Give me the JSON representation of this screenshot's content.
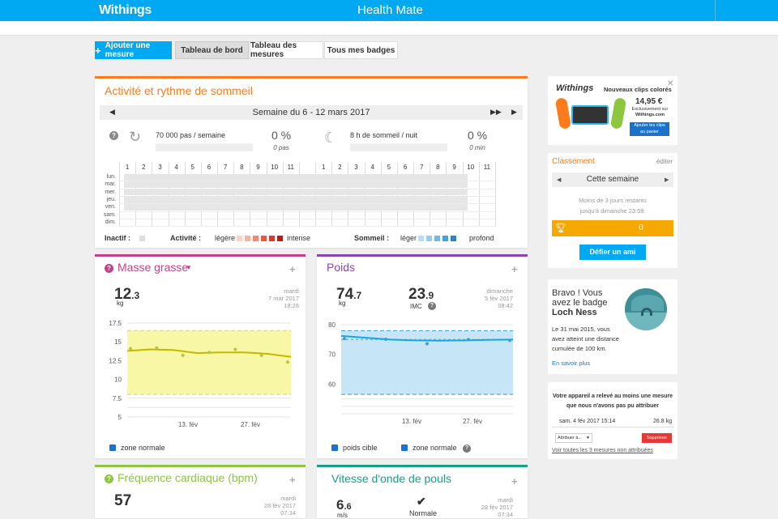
{
  "header": {
    "logo": "Withings",
    "title": "Health Mate"
  },
  "tabs": {
    "add": "Ajouter une mesure",
    "dashboard": "Tableau de bord",
    "measures": "Tableau des mesures",
    "badges": "Tous mes badges"
  },
  "sleep": {
    "title": "Activité et rythme de sommeil",
    "week": "Semaine du 6 - 12 mars 2017",
    "steps_goal": "70 000 pas / semaine",
    "steps_pct": "0 %",
    "steps_unit": "0 pas",
    "sleep_goal": "8 h de sommeil / nuit",
    "sleep_pct": "0 %",
    "sleep_unit": "0 min",
    "hours": [
      "1",
      "2",
      "3",
      "4",
      "5",
      "6",
      "7",
      "8",
      "9",
      "10",
      "11",
      "",
      "1",
      "2",
      "3",
      "4",
      "5",
      "6",
      "7",
      "8",
      "9",
      "10",
      "11"
    ],
    "days": [
      "lun.",
      "mar.",
      "mer.",
      "jeu.",
      "ven.",
      "sam.",
      "dim."
    ],
    "legend": {
      "inactive": "Inactif :",
      "activity": "Activité :",
      "light": "légère",
      "intense": "intense",
      "sleep": "Sommeil :",
      "sleep_light": "léger",
      "sleep_deep": "profond"
    },
    "activity_colors": [
      "#f9d3c8",
      "#f6b3a2",
      "#f08a73",
      "#e75a45",
      "#d63c2f",
      "#b51d1b"
    ],
    "sleep_colors": [
      "#b9ddf0",
      "#99cceb",
      "#74b7e1",
      "#4c9ed3",
      "#2e82c2"
    ]
  },
  "fat": {
    "title": "Masse grasse",
    "value_int": "12",
    "value_dec": ".3",
    "unit": "kg",
    "day": "mardi",
    "date": "7 mar 2017",
    "time": "18:26",
    "legend": "zone normale",
    "color": "#c2418a"
  },
  "weight": {
    "title": "Poids",
    "value_int": "74",
    "value_dec": ".7",
    "unit": "kg",
    "bmi_int": "23",
    "bmi_dec": ".9",
    "bmi_label": "IMC",
    "day": "dimanche",
    "date": "5 fév 2017",
    "time": "08:42",
    "legend_target": "poids cible",
    "legend_zone": "zone normale",
    "color": "#8e44ad"
  },
  "heart": {
    "title": "Fréquence cardiaque (bpm)",
    "value": "57",
    "day": "mardi",
    "date": "28 fév 2017",
    "time": "07:34",
    "color": "#8dc63f"
  },
  "pulse": {
    "title": "Vitesse d'onde de pouls",
    "value_int": "6",
    "value_dec": ".6",
    "unit": "m/s",
    "status": "Normale",
    "day": "mardi",
    "date": "28 fév 2017",
    "time": "07:34"
  },
  "ad": {
    "brand": "Withings",
    "headline": "Nouveaux clips colorés",
    "price": "14,95 €",
    "excl1": "Exclusivement sur",
    "excl2": "Withings.com",
    "cta1": "Ajouter les clips",
    "cta2": "au panier"
  },
  "ranking": {
    "title": "Classement",
    "edit": "éditer",
    "period": "Cette semaine",
    "remaining1": "Moins de 3 jours restants",
    "remaining2": "jusqu'à dimanche 23:59.",
    "score": "0",
    "challenge": "Défier un ami"
  },
  "badge": {
    "line1": "Bravo ! Vous",
    "line2": "avez le badge",
    "name": "Loch Ness",
    "desc1": "Le 31 mai 2015, vous",
    "desc2": "avez atteint une distance",
    "desc3": "cumulée de 100 km.",
    "more": "En savoir plus"
  },
  "unassigned": {
    "msg1": "Votre appareil a relevé au moins une mesure",
    "msg2": "que nous n'avons pas pu attribuer",
    "date": "sam. 4 fév 2017 15:14",
    "value": "26.8 kg",
    "assign": "Attribuer à...",
    "delete": "Supprimer",
    "link": "Voir toutes les 3 mesures non attribuées"
  },
  "chart_data": [
    {
      "type": "line",
      "title": "Masse grasse",
      "ylim": [
        5,
        17.5
      ],
      "yticks": [
        "17.5",
        "15",
        "12.5",
        "10",
        "7.5",
        "5"
      ],
      "xticks": [
        "13. fév",
        "27. fév"
      ],
      "normal_zone": [
        8,
        16.5
      ],
      "series": [
        {
          "values": [
            13.8,
            14.0,
            13.9,
            13.5,
            13.6,
            13.6,
            13.4,
            13.0
          ]
        }
      ],
      "points": [
        14.1,
        14.2,
        13.2,
        13.6,
        14.0,
        13.2,
        12.3
      ]
    },
    {
      "type": "line",
      "title": "Poids",
      "ylim": [
        50,
        80
      ],
      "yticks": [
        "80",
        "70",
        "60"
      ],
      "xticks": [
        "13. fév",
        "27. fév"
      ],
      "normal_zone": [
        56.5,
        78
      ],
      "target": 75,
      "series": [
        {
          "values": [
            76.2,
            75.6,
            75.0,
            74.7,
            74.6,
            74.7,
            74.9,
            75.0
          ]
        }
      ],
      "points": [
        75.3,
        75.1,
        73.6,
        75.0,
        74.7
      ]
    }
  ]
}
